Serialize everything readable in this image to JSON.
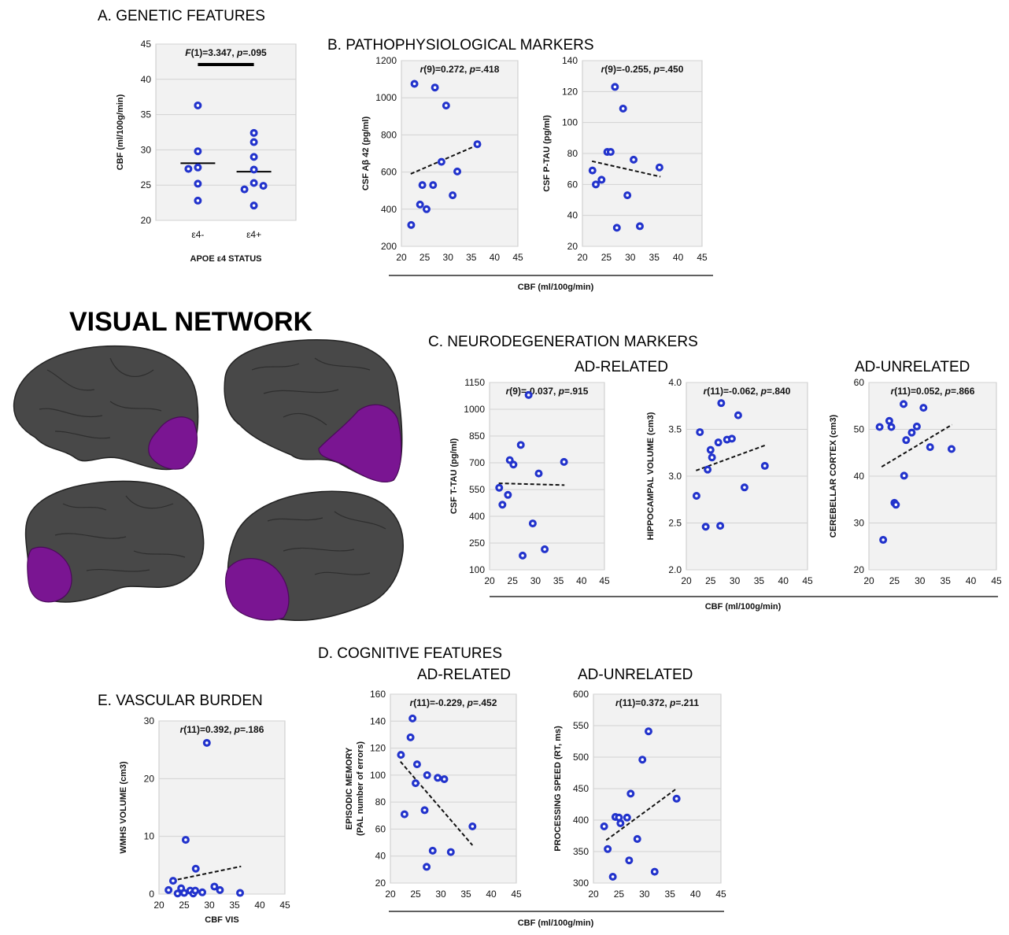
{
  "figure": {
    "network_title": "VISUAL NETWORK",
    "colors": {
      "point": "#2233cc",
      "roi": "#7a1592",
      "brain": "#484848",
      "plot_bg": "#f2f2f2"
    },
    "sections": {
      "a": "A. GENETIC  FEATURES",
      "b": "B. PATHOPHYSIOLOGICAL  MARKERS",
      "c": "C. NEURODEGENERATION  MARKERS",
      "c_related": "AD-RELATED",
      "c_unrelated": "AD-UNRELATED",
      "d": "D. COGNITIVE  FEATURES",
      "d_related": "AD-RELATED",
      "d_unrelated": "AD-UNRELATED",
      "e": "E. VASCULAR  BURDEN"
    },
    "shared_xlabels": {
      "b": "CBF (ml/100g/min)",
      "c": "CBF (ml/100g/min)",
      "d": "CBF (ml/100g/min)"
    }
  },
  "chart_data": [
    {
      "id": "A",
      "type": "scatter",
      "xlabel": "APOE ε4 STATUS",
      "ylabel": "CBF (ml/100g/min)",
      "categories": [
        "ε4-",
        "ε4+"
      ],
      "ylim": [
        20,
        45
      ],
      "yticks": [
        20,
        25,
        30,
        35,
        40,
        45
      ],
      "stat_label": "F(1)=3.347, p=.095",
      "groups": [
        {
          "category": "ε4-",
          "mean": 28.1,
          "values": [
            36.3,
            29.8,
            27.5,
            27.3,
            25.2,
            22.8
          ]
        },
        {
          "category": "ε4+",
          "mean": 26.9,
          "values": [
            32.4,
            31.1,
            29.0,
            27.2,
            25.3,
            24.4,
            24.9,
            22.1
          ]
        }
      ]
    },
    {
      "id": "B1",
      "type": "scatter",
      "xlabel": "",
      "ylabel": "CSF Aβ 42 (pg/ml)",
      "xlim": [
        20,
        45
      ],
      "xticks": [
        20,
        25,
        30,
        35,
        40,
        45
      ],
      "ylim": [
        200,
        1200
      ],
      "yticks": [
        200,
        400,
        600,
        800,
        1000,
        1200
      ],
      "stat_label": "r(9)=0.272, p=.418",
      "trend": [
        [
          22,
          590
        ],
        [
          36.3,
          745
        ]
      ],
      "points": [
        [
          22.1,
          315
        ],
        [
          22.8,
          1075
        ],
        [
          24.0,
          425
        ],
        [
          24.5,
          530
        ],
        [
          25.4,
          400
        ],
        [
          26.8,
          530
        ],
        [
          27.2,
          1055
        ],
        [
          28.6,
          655
        ],
        [
          29.6,
          958
        ],
        [
          31.0,
          475
        ],
        [
          32.0,
          603
        ],
        [
          36.3,
          750
        ]
      ]
    },
    {
      "id": "B2",
      "type": "scatter",
      "xlabel": "",
      "ylabel": "CSF P-TAU (pg/ml)",
      "xlim": [
        20,
        45
      ],
      "xticks": [
        20,
        25,
        30,
        35,
        40,
        45
      ],
      "ylim": [
        20,
        140
      ],
      "yticks": [
        20,
        40,
        60,
        80,
        100,
        120,
        140
      ],
      "stat_label": "r(9)=-0.255, p=.450",
      "trend": [
        [
          22,
          75
        ],
        [
          36.3,
          65
        ]
      ],
      "points": [
        [
          22.1,
          69
        ],
        [
          22.8,
          60
        ],
        [
          24.0,
          63
        ],
        [
          25.2,
          81
        ],
        [
          25.9,
          81
        ],
        [
          26.8,
          123
        ],
        [
          27.2,
          32
        ],
        [
          28.5,
          109
        ],
        [
          29.4,
          53
        ],
        [
          30.7,
          76
        ],
        [
          32.0,
          33
        ],
        [
          36.1,
          71
        ]
      ]
    },
    {
      "id": "C1",
      "type": "scatter",
      "xlabel": "",
      "ylabel": "CSF T-TAU (pg/ml)",
      "xlim": [
        20,
        45
      ],
      "xticks": [
        20,
        25,
        30,
        35,
        40,
        45
      ],
      "ylim": [
        100,
        1150
      ],
      "yticks": [
        100,
        250,
        400,
        550,
        700,
        850,
        1000,
        1150
      ],
      "stat_label": "r(9)=-0.037, p=.915",
      "trend": [
        [
          22,
          585
        ],
        [
          36.3,
          575
        ]
      ],
      "points": [
        [
          22.1,
          560
        ],
        [
          22.8,
          465
        ],
        [
          24.0,
          520
        ],
        [
          24.4,
          715
        ],
        [
          25.2,
          690
        ],
        [
          26.8,
          800
        ],
        [
          27.2,
          180
        ],
        [
          28.5,
          1080
        ],
        [
          29.4,
          360
        ],
        [
          30.7,
          640
        ],
        [
          32.0,
          215
        ],
        [
          36.2,
          705
        ]
      ]
    },
    {
      "id": "C2",
      "type": "scatter",
      "xlabel": "",
      "ylabel": "HIPPOCAMPAL VOLUME (cm3)",
      "xlim": [
        20,
        45
      ],
      "xticks": [
        20,
        25,
        30,
        35,
        40,
        45
      ],
      "ylim": [
        2.0,
        4.0
      ],
      "yticks": [
        2.0,
        2.5,
        3.0,
        3.5,
        4.0
      ],
      "stat_label": "r(11)=-0.062, p=.840",
      "trend": [
        [
          22,
          3.06
        ],
        [
          36.3,
          3.33
        ]
      ],
      "points": [
        [
          22.1,
          2.79
        ],
        [
          22.8,
          3.47
        ],
        [
          24.0,
          2.46
        ],
        [
          24.4,
          3.07
        ],
        [
          25.0,
          3.28
        ],
        [
          25.3,
          3.2
        ],
        [
          26.6,
          3.36
        ],
        [
          27.2,
          3.78
        ],
        [
          27.0,
          2.47
        ],
        [
          28.4,
          3.39
        ],
        [
          29.4,
          3.4
        ],
        [
          30.7,
          3.65
        ],
        [
          32.0,
          2.88
        ],
        [
          36.2,
          3.11
        ]
      ]
    },
    {
      "id": "C3",
      "type": "scatter",
      "xlabel": "",
      "ylabel": "CEREBELLAR CORTEX (cm3)",
      "xlim": [
        20,
        45
      ],
      "xticks": [
        20,
        25,
        30,
        35,
        40,
        45
      ],
      "ylim": [
        20,
        60
      ],
      "yticks": [
        20,
        30,
        40,
        50,
        60
      ],
      "stat_label": "r(11)=0.052, p=.866",
      "trend": [
        [
          22.5,
          42
        ],
        [
          36.3,
          51
        ]
      ],
      "points": [
        [
          22.1,
          50.5
        ],
        [
          22.8,
          26.4
        ],
        [
          24.0,
          51.8
        ],
        [
          24.4,
          50.5
        ],
        [
          25.0,
          34.3
        ],
        [
          25.3,
          33.9
        ],
        [
          26.8,
          55.4
        ],
        [
          26.9,
          40.1
        ],
        [
          27.3,
          47.7
        ],
        [
          28.4,
          49.3
        ],
        [
          29.4,
          50.6
        ],
        [
          30.7,
          54.6
        ],
        [
          32.0,
          46.2
        ],
        [
          36.2,
          45.8
        ]
      ]
    },
    {
      "id": "D1",
      "type": "scatter",
      "xlabel": "",
      "ylabel": "EPISODIC MEMORY\n(PAL number of errors)",
      "xlim": [
        20,
        45
      ],
      "xticks": [
        20,
        25,
        30,
        35,
        40,
        45
      ],
      "ylim": [
        20,
        160
      ],
      "yticks": [
        20,
        40,
        60,
        80,
        100,
        120,
        140,
        160
      ],
      "stat_label": "r(11)=-0.229, p=.452",
      "trend": [
        [
          22,
          110
        ],
        [
          36.3,
          48
        ]
      ],
      "points": [
        [
          22.1,
          115
        ],
        [
          22.8,
          71
        ],
        [
          24.0,
          128
        ],
        [
          24.4,
          142
        ],
        [
          25.0,
          94
        ],
        [
          25.3,
          108
        ],
        [
          26.8,
          74
        ],
        [
          27.2,
          32
        ],
        [
          27.3,
          100
        ],
        [
          28.4,
          44
        ],
        [
          29.4,
          98
        ],
        [
          30.7,
          97
        ],
        [
          32.0,
          43
        ],
        [
          36.3,
          62
        ]
      ]
    },
    {
      "id": "D2",
      "type": "scatter",
      "xlabel": "",
      "ylabel": "PROCESSING SPEED (RT, ms)",
      "xlim": [
        20,
        45
      ],
      "xticks": [
        20,
        25,
        30,
        35,
        40,
        45
      ],
      "ylim": [
        300,
        600
      ],
      "yticks": [
        300,
        350,
        400,
        450,
        500,
        550,
        600
      ],
      "stat_label": "r(11)=0.372, p=.211",
      "trend": [
        [
          22.5,
          368
        ],
        [
          36.3,
          450
        ]
      ],
      "points": [
        [
          22.1,
          390
        ],
        [
          22.8,
          354
        ],
        [
          23.8,
          310
        ],
        [
          24.3,
          405
        ],
        [
          25.0,
          404
        ],
        [
          25.3,
          395
        ],
        [
          26.6,
          404
        ],
        [
          27.0,
          336
        ],
        [
          27.3,
          442
        ],
        [
          28.6,
          370
        ],
        [
          29.6,
          496
        ],
        [
          30.8,
          541
        ],
        [
          32.0,
          318
        ],
        [
          36.3,
          434
        ]
      ]
    },
    {
      "id": "E",
      "type": "scatter",
      "xlabel": "CBF VIS",
      "ylabel": "WMHS VOLUME (cm3)",
      "xlim": [
        20,
        45
      ],
      "xticks": [
        20,
        25,
        30,
        35,
        40,
        45
      ],
      "ylim": [
        0,
        30
      ],
      "yticks": [
        0,
        10,
        20,
        30
      ],
      "stat_label": "r(11)=0.392, p=.186",
      "trend": [
        [
          22.5,
          2.3
        ],
        [
          36.3,
          4.8
        ]
      ],
      "points": [
        [
          21.9,
          0.7
        ],
        [
          22.8,
          2.3
        ],
        [
          23.7,
          0.1
        ],
        [
          24.4,
          1.0
        ],
        [
          25.0,
          0.2
        ],
        [
          25.3,
          9.4
        ],
        [
          26.2,
          0.6
        ],
        [
          26.8,
          0.1
        ],
        [
          27.2,
          0.6
        ],
        [
          27.3,
          4.4
        ],
        [
          28.6,
          0.3
        ],
        [
          29.5,
          26.2
        ],
        [
          31.0,
          1.3
        ],
        [
          32.1,
          0.7
        ],
        [
          36.1,
          0.2
        ]
      ]
    }
  ]
}
